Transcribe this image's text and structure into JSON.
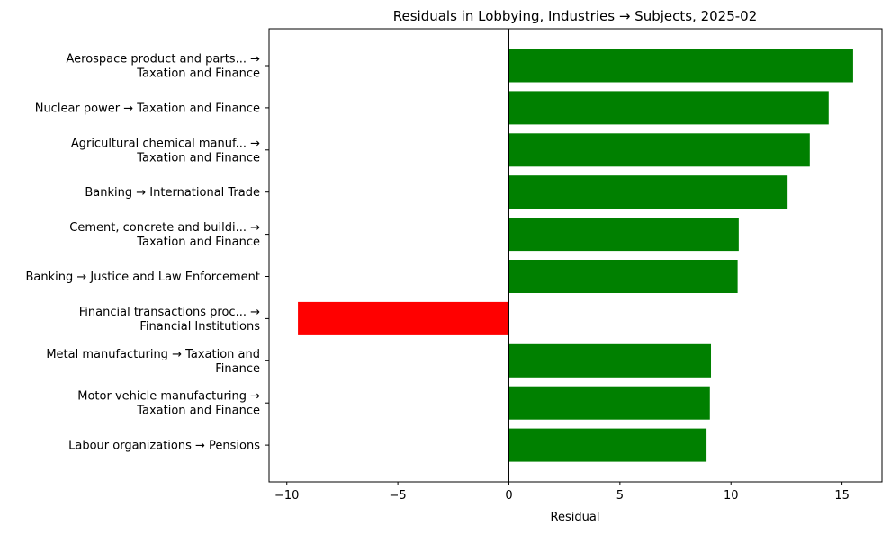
{
  "chart_data": {
    "type": "bar",
    "orientation": "horizontal",
    "title": "Residuals in Lobbying, Industries → Subjects, 2025-02",
    "xlabel": "Residual",
    "ylabel": "",
    "xlim": [
      -10.8,
      16.8
    ],
    "xticks": [
      -10,
      -5,
      0,
      5,
      10,
      15
    ],
    "xtick_labels": [
      "−10",
      "−5",
      "0",
      "5",
      "10",
      "15"
    ],
    "grid": false,
    "categories": [
      [
        "Aerospace product and parts... →",
        "Taxation and Finance"
      ],
      [
        "Nuclear power → Taxation and Finance"
      ],
      [
        "Agricultural chemical manuf... →",
        "Taxation and Finance"
      ],
      [
        "Banking → International Trade"
      ],
      [
        "Cement, concrete and buildi... →",
        "Taxation and Finance"
      ],
      [
        "Banking → Justice and Law Enforcement"
      ],
      [
        "Financial transactions proc... →",
        "Financial Institutions"
      ],
      [
        "Metal manufacturing → Taxation and",
        "Finance"
      ],
      [
        "Motor vehicle manufacturing →",
        "Taxation and Finance"
      ],
      [
        "Labour organizations → Pensions"
      ]
    ],
    "values": [
      15.5,
      14.4,
      13.55,
      12.55,
      10.35,
      10.3,
      -9.5,
      9.1,
      9.05,
      8.9
    ],
    "colors": {
      "positive": "#008000",
      "negative": "#ff0000"
    }
  }
}
